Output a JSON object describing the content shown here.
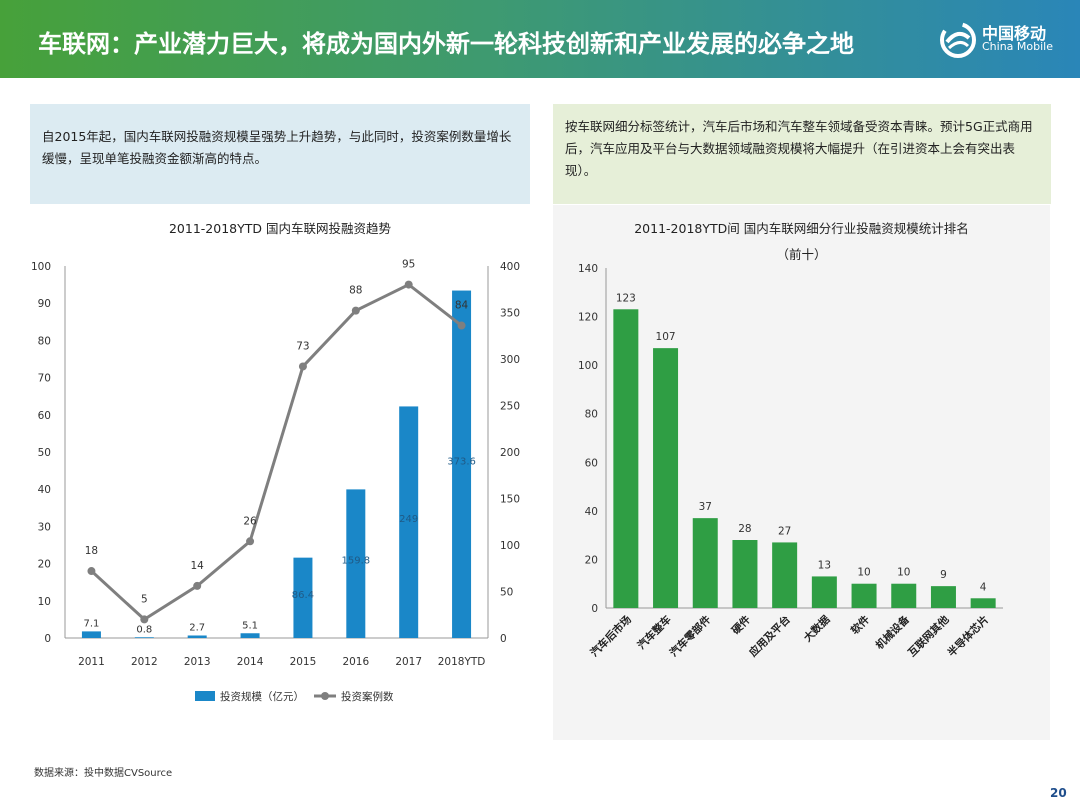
{
  "header": {
    "title": "车联网：产业潜力巨大，将成为国内外新一轮科技创新和产业发展的必争之地",
    "logo_cn": "中国移动",
    "logo_en": "China Mobile"
  },
  "left_box": {
    "text": "自2015年起，国内车联网投融资规模呈强势上升趋势，与此同时，投资案例数量增长缓慢，呈现单笔投融资金额渐高的特点。"
  },
  "right_box": {
    "text": "按车联网细分标签统计，汽车后市场和汽车整车领域备受资本青睐。预计5G正式商用后，汽车应用及平台与大数据领域融资规模将大幅提升（在引进资本上会有突出表现）。"
  },
  "colors": {
    "bar_blue": "#1a87c8",
    "line_gray": "#7f7f7f",
    "bar_green": "#2f9e44"
  },
  "chart_data": [
    {
      "type": "bar",
      "title": "2011-2018YTD 国内车联网投融资趋势",
      "categories": [
        "2011",
        "2012",
        "2013",
        "2014",
        "2015",
        "2016",
        "2017",
        "2018YTD"
      ],
      "series": [
        {
          "name": "投资规模（亿元）",
          "type": "bar",
          "axis": "right",
          "values": [
            7.1,
            0.8,
            2.7,
            5.1,
            86.4,
            159.8,
            249.0,
            373.6
          ],
          "labels": [
            "7.1",
            "0.8",
            "2.7",
            "5.1",
            "86.4",
            "159.8",
            "249",
            "373.6"
          ]
        },
        {
          "name": "投资案例数",
          "type": "line",
          "axis": "left",
          "values": [
            18,
            5,
            14,
            26,
            73,
            88,
            95,
            84
          ],
          "labels": [
            "18",
            "5",
            "14",
            "26",
            "73",
            "88",
            "95",
            "84"
          ]
        }
      ],
      "y_left": {
        "min": 0,
        "max": 100,
        "ticks": [
          "0",
          "10",
          "20",
          "30",
          "40",
          "50",
          "60",
          "70",
          "80",
          "90",
          "100"
        ]
      },
      "y_right": {
        "min": 0,
        "max": 400,
        "ticks": [
          "0",
          "50",
          "100",
          "150",
          "200",
          "250",
          "300",
          "350",
          "400"
        ]
      },
      "legend_position": "bottom"
    },
    {
      "type": "bar",
      "title": "2011-2018YTD间 国内车联网细分行业投融资规模统计排名",
      "subtitle": "（前十）",
      "categories": [
        "汽车后市场",
        "汽车整车",
        "汽车零部件",
        "硬件",
        "应用及平台",
        "大数据",
        "软件",
        "机械设备",
        "互联网其他",
        "半导体芯片"
      ],
      "values": [
        123,
        107,
        37,
        28,
        27,
        13,
        10,
        10,
        9,
        4
      ],
      "y_axis": {
        "min": 0,
        "max": 140,
        "ticks": [
          "0",
          "20",
          "40",
          "60",
          "80",
          "100",
          "120",
          "140"
        ]
      }
    }
  ],
  "footer": {
    "source": "数据来源：投中数据CVSource",
    "page": "20"
  }
}
